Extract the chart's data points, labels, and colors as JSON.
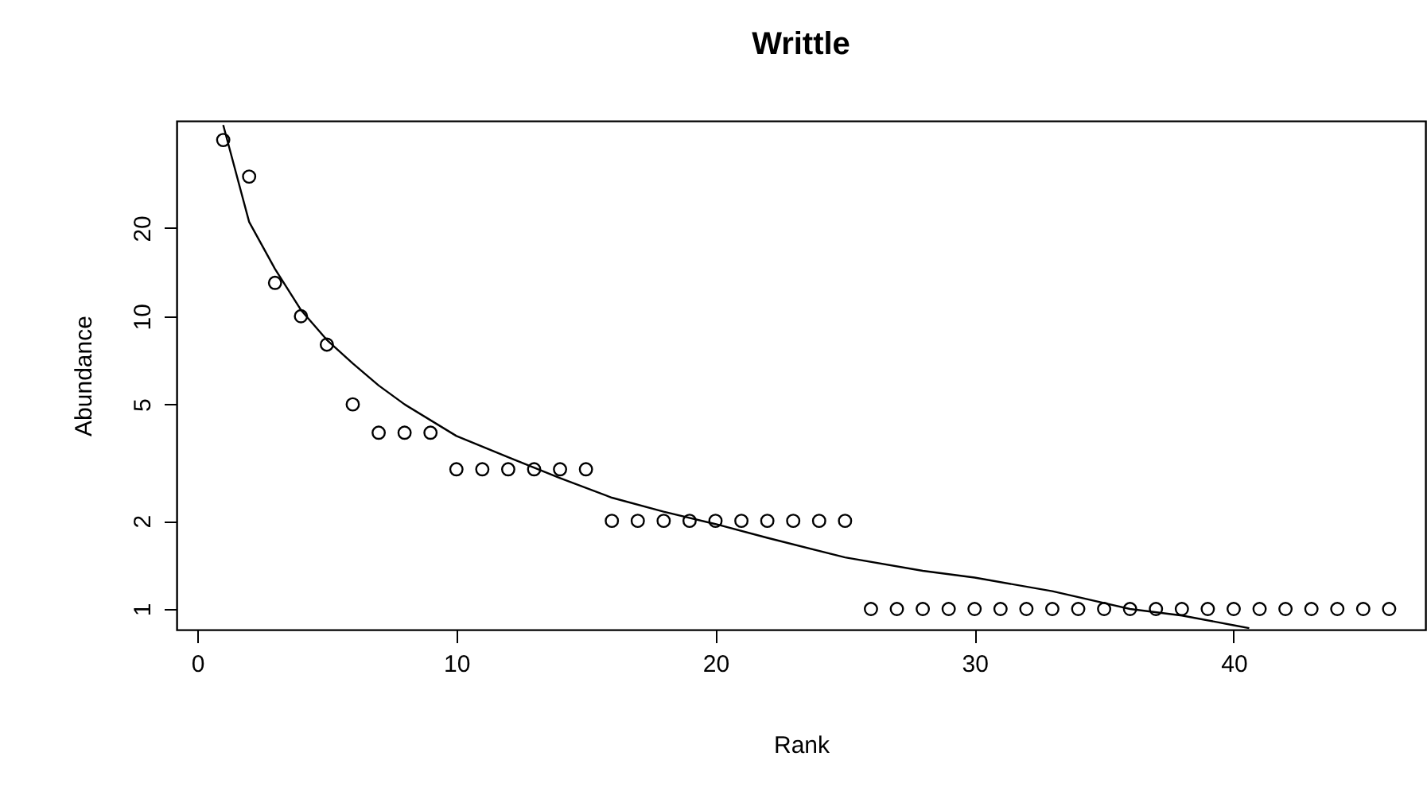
{
  "chart_data": {
    "type": "scatter",
    "title": "Writtle",
    "xlabel": "Rank",
    "ylabel": "Abundance",
    "log": "y",
    "grid": false,
    "xlim": [
      -0.8,
      47.4
    ],
    "xticks": [
      0,
      10,
      20,
      30,
      40
    ],
    "ylim": [
      0.85,
      46.5
    ],
    "yticks": [
      1,
      2,
      5,
      10,
      20
    ],
    "series": [
      {
        "marker": "circle",
        "color": "#000000",
        "x": [
          1,
          2,
          3,
          4,
          5,
          6,
          7,
          8,
          9,
          10,
          11,
          12,
          13,
          14,
          15,
          16,
          17,
          18,
          19,
          20,
          21,
          22,
          23,
          24,
          25,
          26,
          27,
          28,
          29,
          30,
          31,
          32,
          33,
          34,
          35,
          36,
          37,
          38,
          39,
          40,
          41,
          42,
          43,
          44,
          45,
          46
        ],
        "values": [
          40,
          30,
          13,
          10,
          8,
          5,
          4,
          4,
          4,
          3,
          3,
          3,
          3,
          3,
          3,
          2,
          2,
          2,
          2,
          2,
          2,
          2,
          2,
          2,
          2,
          1,
          1,
          1,
          1,
          1,
          1,
          1,
          1,
          1,
          1,
          1,
          1,
          1,
          1,
          1,
          1,
          1,
          1,
          1,
          1,
          1
        ]
      },
      {
        "type": "line",
        "color": "#000000",
        "line_style": "solid",
        "x": [
          1,
          2,
          3,
          4,
          5,
          6,
          7,
          8,
          10,
          12,
          14,
          16,
          18,
          20,
          22,
          25,
          28,
          30,
          33,
          36,
          38,
          40,
          40.6
        ],
        "values": [
          45,
          21,
          14.5,
          10.5,
          8.3,
          6.9,
          5.8,
          5.0,
          3.9,
          3.3,
          2.8,
          2.4,
          2.15,
          1.95,
          1.75,
          1.5,
          1.35,
          1.28,
          1.15,
          1.0,
          0.95,
          0.88,
          0.86
        ]
      }
    ]
  }
}
